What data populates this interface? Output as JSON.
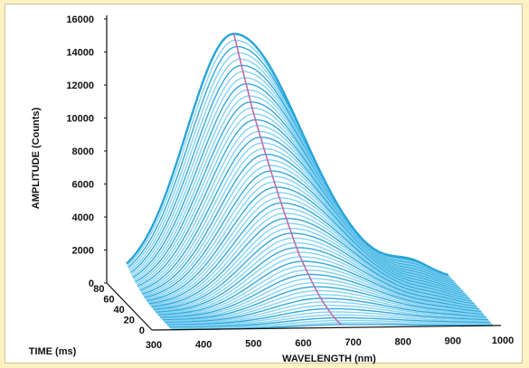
{
  "chart_data": {
    "type": "area",
    "subtype": "3d-waterfall",
    "title": "",
    "xlabel": "WAVELENGTH (nm)",
    "ylabel": "AMPLITUDE (Counts)",
    "zlabel": "TIME (ms)",
    "x_ticks": [
      "300",
      "400",
      "500",
      "600",
      "700",
      "800",
      "900",
      "1000"
    ],
    "y_ticks": [
      "0",
      "2000",
      "4000",
      "6000",
      "8000",
      "10000",
      "12000",
      "14000",
      "16000"
    ],
    "z_ticks": [
      "0",
      "20",
      "40",
      "60",
      "80"
    ],
    "xlim": [
      300,
      1000
    ],
    "ylim": [
      0,
      16000
    ],
    "zlim": [
      0,
      90
    ],
    "series_count": 60,
    "peak": {
      "time_ms": 90,
      "amplitude": 15000,
      "wavelength_nm": 555
    },
    "peak_track": [
      {
        "time_ms": 0,
        "wavelength_nm": 680
      },
      {
        "time_ms": 15,
        "wavelength_nm": 650
      },
      {
        "time_ms": 30,
        "wavelength_nm": 625
      },
      {
        "time_ms": 50,
        "wavelength_nm": 600
      },
      {
        "time_ms": 70,
        "wavelength_nm": 575
      },
      {
        "time_ms": 90,
        "wavelength_nm": 555
      }
    ],
    "colors": {
      "spectra": "#27a4d8",
      "spectra_light": "#7fd0f0",
      "peak_track": "#c06bb0",
      "axis": "#111111"
    }
  },
  "frame": {
    "border_color": "#cfc39a",
    "page_background": "#fdf2c4"
  }
}
